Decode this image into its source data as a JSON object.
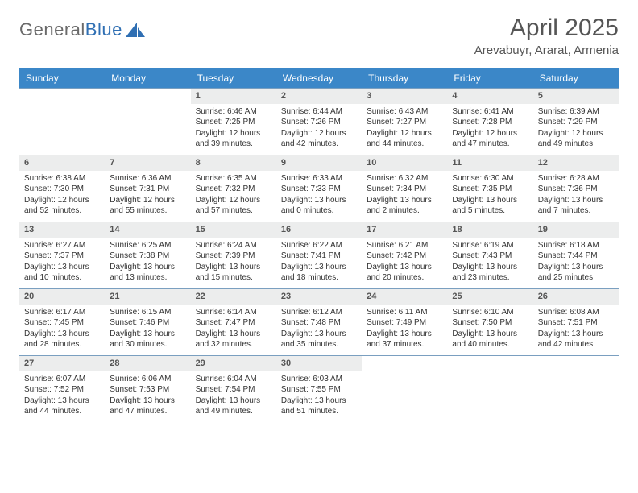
{
  "logo": {
    "text_general": "General",
    "text_blue": "Blue"
  },
  "title": "April 2025",
  "location": "Arevabuyr, Ararat, Armenia",
  "colors": {
    "header_bg": "#3b87c8",
    "header_text": "#ffffff",
    "row_border": "#7a9fc0",
    "daynum_bg": "#eceded",
    "body_text": "#333333",
    "title_text": "#555555"
  },
  "weekdays": [
    "Sunday",
    "Monday",
    "Tuesday",
    "Wednesday",
    "Thursday",
    "Friday",
    "Saturday"
  ],
  "weeks": [
    [
      {
        "num": "",
        "sunrise": "",
        "sunset": "",
        "daylight": ""
      },
      {
        "num": "",
        "sunrise": "",
        "sunset": "",
        "daylight": ""
      },
      {
        "num": "1",
        "sunrise": "Sunrise: 6:46 AM",
        "sunset": "Sunset: 7:25 PM",
        "daylight": "Daylight: 12 hours and 39 minutes."
      },
      {
        "num": "2",
        "sunrise": "Sunrise: 6:44 AM",
        "sunset": "Sunset: 7:26 PM",
        "daylight": "Daylight: 12 hours and 42 minutes."
      },
      {
        "num": "3",
        "sunrise": "Sunrise: 6:43 AM",
        "sunset": "Sunset: 7:27 PM",
        "daylight": "Daylight: 12 hours and 44 minutes."
      },
      {
        "num": "4",
        "sunrise": "Sunrise: 6:41 AM",
        "sunset": "Sunset: 7:28 PM",
        "daylight": "Daylight: 12 hours and 47 minutes."
      },
      {
        "num": "5",
        "sunrise": "Sunrise: 6:39 AM",
        "sunset": "Sunset: 7:29 PM",
        "daylight": "Daylight: 12 hours and 49 minutes."
      }
    ],
    [
      {
        "num": "6",
        "sunrise": "Sunrise: 6:38 AM",
        "sunset": "Sunset: 7:30 PM",
        "daylight": "Daylight: 12 hours and 52 minutes."
      },
      {
        "num": "7",
        "sunrise": "Sunrise: 6:36 AM",
        "sunset": "Sunset: 7:31 PM",
        "daylight": "Daylight: 12 hours and 55 minutes."
      },
      {
        "num": "8",
        "sunrise": "Sunrise: 6:35 AM",
        "sunset": "Sunset: 7:32 PM",
        "daylight": "Daylight: 12 hours and 57 minutes."
      },
      {
        "num": "9",
        "sunrise": "Sunrise: 6:33 AM",
        "sunset": "Sunset: 7:33 PM",
        "daylight": "Daylight: 13 hours and 0 minutes."
      },
      {
        "num": "10",
        "sunrise": "Sunrise: 6:32 AM",
        "sunset": "Sunset: 7:34 PM",
        "daylight": "Daylight: 13 hours and 2 minutes."
      },
      {
        "num": "11",
        "sunrise": "Sunrise: 6:30 AM",
        "sunset": "Sunset: 7:35 PM",
        "daylight": "Daylight: 13 hours and 5 minutes."
      },
      {
        "num": "12",
        "sunrise": "Sunrise: 6:28 AM",
        "sunset": "Sunset: 7:36 PM",
        "daylight": "Daylight: 13 hours and 7 minutes."
      }
    ],
    [
      {
        "num": "13",
        "sunrise": "Sunrise: 6:27 AM",
        "sunset": "Sunset: 7:37 PM",
        "daylight": "Daylight: 13 hours and 10 minutes."
      },
      {
        "num": "14",
        "sunrise": "Sunrise: 6:25 AM",
        "sunset": "Sunset: 7:38 PM",
        "daylight": "Daylight: 13 hours and 13 minutes."
      },
      {
        "num": "15",
        "sunrise": "Sunrise: 6:24 AM",
        "sunset": "Sunset: 7:39 PM",
        "daylight": "Daylight: 13 hours and 15 minutes."
      },
      {
        "num": "16",
        "sunrise": "Sunrise: 6:22 AM",
        "sunset": "Sunset: 7:41 PM",
        "daylight": "Daylight: 13 hours and 18 minutes."
      },
      {
        "num": "17",
        "sunrise": "Sunrise: 6:21 AM",
        "sunset": "Sunset: 7:42 PM",
        "daylight": "Daylight: 13 hours and 20 minutes."
      },
      {
        "num": "18",
        "sunrise": "Sunrise: 6:19 AM",
        "sunset": "Sunset: 7:43 PM",
        "daylight": "Daylight: 13 hours and 23 minutes."
      },
      {
        "num": "19",
        "sunrise": "Sunrise: 6:18 AM",
        "sunset": "Sunset: 7:44 PM",
        "daylight": "Daylight: 13 hours and 25 minutes."
      }
    ],
    [
      {
        "num": "20",
        "sunrise": "Sunrise: 6:17 AM",
        "sunset": "Sunset: 7:45 PM",
        "daylight": "Daylight: 13 hours and 28 minutes."
      },
      {
        "num": "21",
        "sunrise": "Sunrise: 6:15 AM",
        "sunset": "Sunset: 7:46 PM",
        "daylight": "Daylight: 13 hours and 30 minutes."
      },
      {
        "num": "22",
        "sunrise": "Sunrise: 6:14 AM",
        "sunset": "Sunset: 7:47 PM",
        "daylight": "Daylight: 13 hours and 32 minutes."
      },
      {
        "num": "23",
        "sunrise": "Sunrise: 6:12 AM",
        "sunset": "Sunset: 7:48 PM",
        "daylight": "Daylight: 13 hours and 35 minutes."
      },
      {
        "num": "24",
        "sunrise": "Sunrise: 6:11 AM",
        "sunset": "Sunset: 7:49 PM",
        "daylight": "Daylight: 13 hours and 37 minutes."
      },
      {
        "num": "25",
        "sunrise": "Sunrise: 6:10 AM",
        "sunset": "Sunset: 7:50 PM",
        "daylight": "Daylight: 13 hours and 40 minutes."
      },
      {
        "num": "26",
        "sunrise": "Sunrise: 6:08 AM",
        "sunset": "Sunset: 7:51 PM",
        "daylight": "Daylight: 13 hours and 42 minutes."
      }
    ],
    [
      {
        "num": "27",
        "sunrise": "Sunrise: 6:07 AM",
        "sunset": "Sunset: 7:52 PM",
        "daylight": "Daylight: 13 hours and 44 minutes."
      },
      {
        "num": "28",
        "sunrise": "Sunrise: 6:06 AM",
        "sunset": "Sunset: 7:53 PM",
        "daylight": "Daylight: 13 hours and 47 minutes."
      },
      {
        "num": "29",
        "sunrise": "Sunrise: 6:04 AM",
        "sunset": "Sunset: 7:54 PM",
        "daylight": "Daylight: 13 hours and 49 minutes."
      },
      {
        "num": "30",
        "sunrise": "Sunrise: 6:03 AM",
        "sunset": "Sunset: 7:55 PM",
        "daylight": "Daylight: 13 hours and 51 minutes."
      },
      {
        "num": "",
        "sunrise": "",
        "sunset": "",
        "daylight": ""
      },
      {
        "num": "",
        "sunrise": "",
        "sunset": "",
        "daylight": ""
      },
      {
        "num": "",
        "sunrise": "",
        "sunset": "",
        "daylight": ""
      }
    ]
  ]
}
